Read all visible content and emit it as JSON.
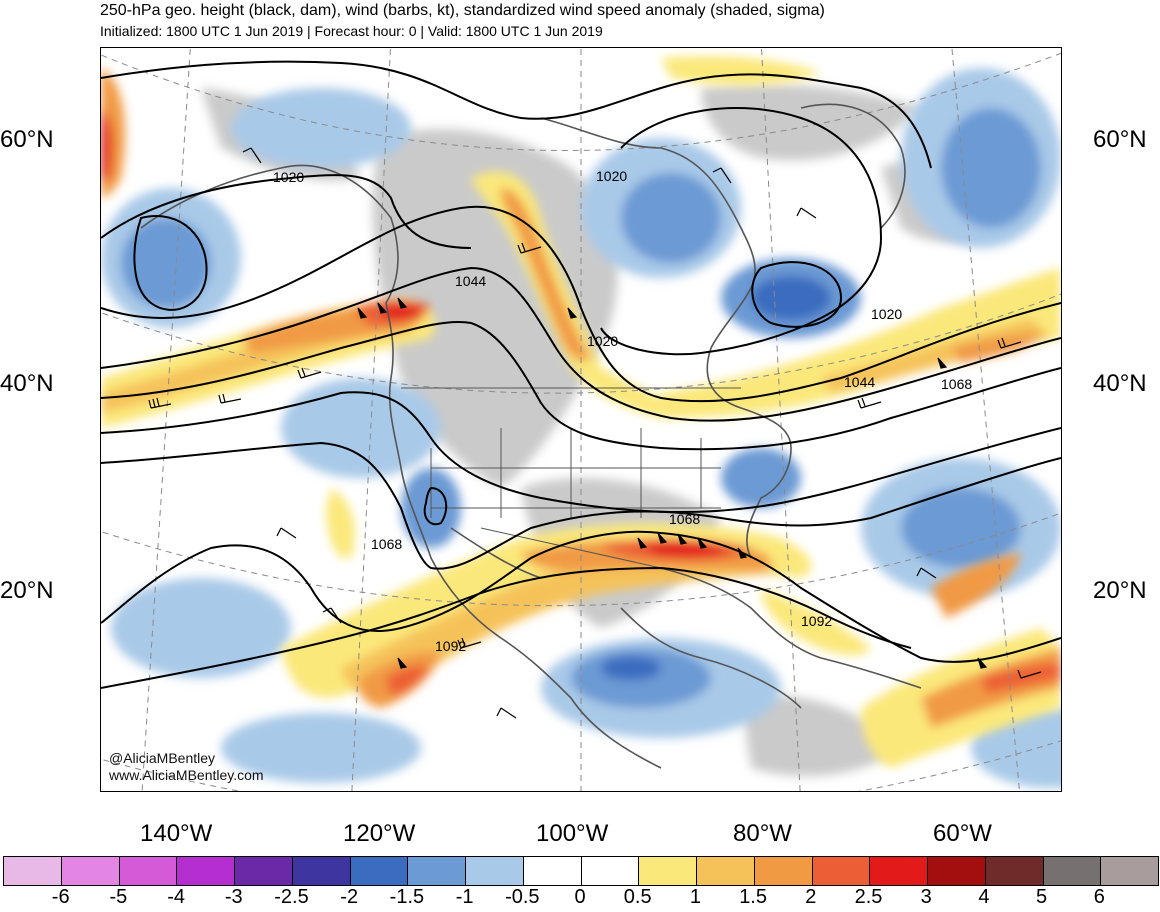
{
  "header": {
    "title": "250-hPa geo. height (black, dam), wind (barbs, kt), standardized wind speed anomaly (shaded, sigma)",
    "subtitle": "Initialized: 1800 UTC 1 Jun 2019 | Forecast hour: 0 | Valid: 1800 UTC 1 Jun 2019"
  },
  "lat_labels": [
    "60°N",
    "40°N",
    "20°N"
  ],
  "lon_labels": [
    "140°W",
    "120°W",
    "100°W",
    "80°W",
    "60°W"
  ],
  "contour_labels": [
    "1020",
    "1020",
    "1044",
    "1020",
    "1020",
    "1044",
    "1068",
    "1068",
    "1068",
    "1092",
    "1092"
  ],
  "credits": [
    "@AliciaMBentley",
    "www.AliciaMBentley.com"
  ],
  "colorbar": {
    "labels": [
      "-6",
      "-5",
      "-4",
      "-3",
      "-2.5",
      "-2",
      "-1.5",
      "-1",
      "-0.5",
      "0",
      "0.5",
      "1",
      "1.5",
      "2",
      "2.5",
      "3",
      "4",
      "5",
      "6"
    ],
    "colors": [
      "#e8b8e6",
      "#e385e3",
      "#d45ad7",
      "#b52ed0",
      "#6a2aa8",
      "#3e35a0",
      "#3a6cbf",
      "#6c9ad4",
      "#a9c9e8",
      "#ffffff",
      "#ffffff",
      "#fbe87a",
      "#f5c25a",
      "#f19a44",
      "#ec5f36",
      "#e21a1a",
      "#a30f0f",
      "#6f2a2a",
      "#777070",
      "#a89c9c"
    ]
  },
  "legend_colors": {
    "land_gray": "#c8c8c8",
    "contour": "#000000",
    "coast": "#555555"
  }
}
